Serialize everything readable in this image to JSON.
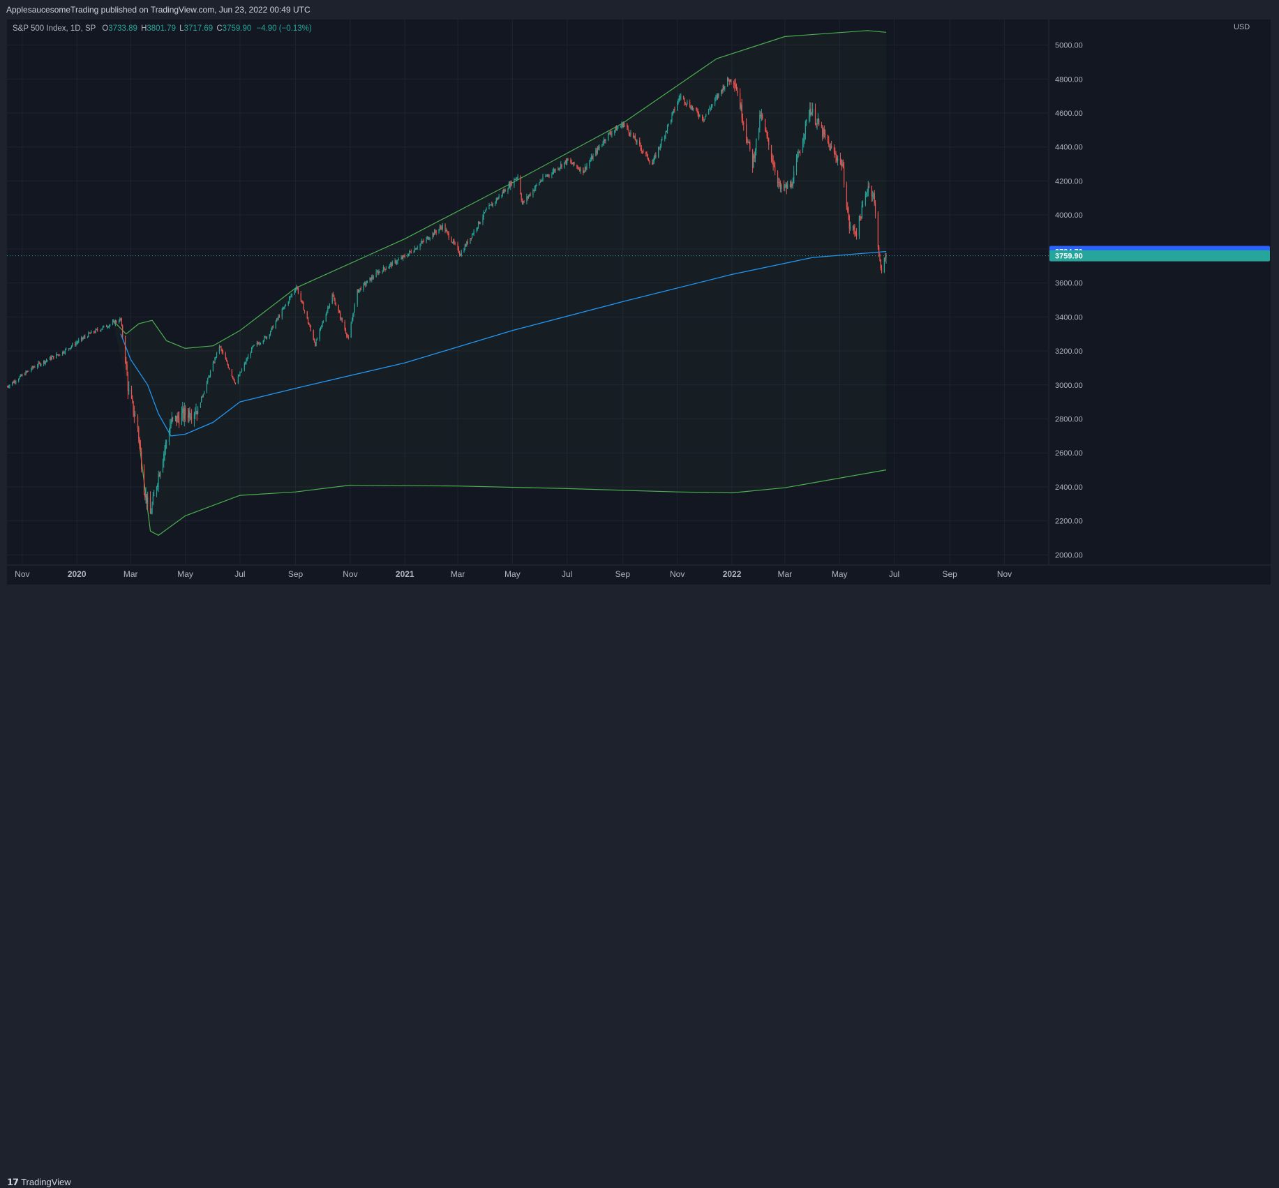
{
  "header": {
    "published_text": "ApplesaucesomeTrading published on TradingView.com, Jun 23, 2022 00:49 UTC"
  },
  "legend": {
    "symbol": "S&P 500 Index, 1D, SP",
    "open_label": "O",
    "open": "3733.89",
    "high_label": "H",
    "high": "3801.79",
    "low_label": "L",
    "low": "3717.69",
    "close_label": "C",
    "close": "3759.90",
    "change": "−4.90 (−0.13%)"
  },
  "currency": "USD",
  "footer": {
    "brand": "TradingView",
    "logo_icon": "tradingview-logo-icon"
  },
  "colors": {
    "up": "#26a69a",
    "down": "#ef5350",
    "ma": "#2196f3",
    "band": "#4caf50",
    "ma_label_bg": "#2962ff",
    "price_label_bg": "#26a69a"
  },
  "chart_data": {
    "type": "candlestick",
    "x_ticks": [
      {
        "label": "Nov",
        "date": "2019-11-01"
      },
      {
        "label": "2020",
        "date": "2020-01-01"
      },
      {
        "label": "Mar",
        "date": "2020-03-01"
      },
      {
        "label": "May",
        "date": "2020-05-01"
      },
      {
        "label": "Jul",
        "date": "2020-07-01"
      },
      {
        "label": "Sep",
        "date": "2020-09-01"
      },
      {
        "label": "Nov",
        "date": "2020-11-01"
      },
      {
        "label": "2021",
        "date": "2021-01-01"
      },
      {
        "label": "Mar",
        "date": "2021-03-01"
      },
      {
        "label": "May",
        "date": "2021-05-01"
      },
      {
        "label": "Jul",
        "date": "2021-07-01"
      },
      {
        "label": "Sep",
        "date": "2021-09-01"
      },
      {
        "label": "Nov",
        "date": "2021-11-01"
      },
      {
        "label": "2022",
        "date": "2022-01-01"
      },
      {
        "label": "Mar",
        "date": "2022-03-01"
      },
      {
        "label": "May",
        "date": "2022-05-01"
      },
      {
        "label": "Jul",
        "date": "2022-07-01"
      },
      {
        "label": "Sep",
        "date": "2022-09-01"
      },
      {
        "label": "Nov",
        "date": "2022-11-01"
      }
    ],
    "x_range": [
      "2019-10-15",
      "2022-12-15"
    ],
    "y_ticks": [
      "2000.00",
      "2200.00",
      "2400.00",
      "2600.00",
      "2800.00",
      "3000.00",
      "3200.00",
      "3400.00",
      "3600.00",
      "3800.00",
      "4000.00",
      "4200.00",
      "4400.00",
      "4600.00",
      "4800.00",
      "5000.00"
    ],
    "ylim": [
      1940,
      5150
    ],
    "grid": true,
    "current_price": 3759.9,
    "current_price_label": "3759.90",
    "ma_value_label": "3784.70",
    "price_path": [
      [
        "2019-10-15",
        2990
      ],
      [
        "2019-11-15",
        3110
      ],
      [
        "2019-12-15",
        3190
      ],
      [
        "2020-01-15",
        3300
      ],
      [
        "2020-02-19",
        3386
      ],
      [
        "2020-02-28",
        2950
      ],
      [
        "2020-03-09",
        2750
      ],
      [
        "2020-03-16",
        2390
      ],
      [
        "2020-03-23",
        2237
      ],
      [
        "2020-04-01",
        2470
      ],
      [
        "2020-04-15",
        2780
      ],
      [
        "2020-05-01",
        2830
      ],
      [
        "2020-05-15",
        2860
      ],
      [
        "2020-06-08",
        3230
      ],
      [
        "2020-06-26",
        3010
      ],
      [
        "2020-07-15",
        3220
      ],
      [
        "2020-08-01",
        3290
      ],
      [
        "2020-09-02",
        3580
      ],
      [
        "2020-09-23",
        3240
      ],
      [
        "2020-10-12",
        3530
      ],
      [
        "2020-10-30",
        3270
      ],
      [
        "2020-11-09",
        3550
      ],
      [
        "2020-12-01",
        3660
      ],
      [
        "2021-01-01",
        3756
      ],
      [
        "2021-02-12",
        3935
      ],
      [
        "2021-03-04",
        3770
      ],
      [
        "2021-04-01",
        4020
      ],
      [
        "2021-05-07",
        4230
      ],
      [
        "2021-05-12",
        4065
      ],
      [
        "2021-06-01",
        4200
      ],
      [
        "2021-07-01",
        4320
      ],
      [
        "2021-07-19",
        4260
      ],
      [
        "2021-08-15",
        4470
      ],
      [
        "2021-09-02",
        4537
      ],
      [
        "2021-10-04",
        4300
      ],
      [
        "2021-11-04",
        4700
      ],
      [
        "2021-11-30",
        4567
      ],
      [
        "2021-12-27",
        4791
      ],
      [
        "2022-01-04",
        4796
      ],
      [
        "2022-01-24",
        4300
      ],
      [
        "2022-02-02",
        4590
      ],
      [
        "2022-02-24",
        4150
      ],
      [
        "2022-03-08",
        4170
      ],
      [
        "2022-03-29",
        4630
      ],
      [
        "2022-04-21",
        4390
      ],
      [
        "2022-05-04",
        4300
      ],
      [
        "2022-05-12",
        3930
      ],
      [
        "2022-05-20",
        3900
      ],
      [
        "2022-06-02",
        4176
      ],
      [
        "2022-06-08",
        4115
      ],
      [
        "2022-06-16",
        3666
      ],
      [
        "2022-06-22",
        3760
      ]
    ],
    "ma_path": [
      [
        "2020-02-19",
        3300
      ],
      [
        "2020-03-01",
        3150
      ],
      [
        "2020-03-20",
        3000
      ],
      [
        "2020-04-01",
        2830
      ],
      [
        "2020-04-15",
        2700
      ],
      [
        "2020-05-01",
        2710
      ],
      [
        "2020-06-01",
        2780
      ],
      [
        "2020-07-01",
        2900
      ],
      [
        "2020-09-01",
        2980
      ],
      [
        "2021-01-01",
        3130
      ],
      [
        "2021-05-01",
        3320
      ],
      [
        "2021-09-01",
        3490
      ],
      [
        "2022-01-01",
        3650
      ],
      [
        "2022-04-01",
        3750
      ],
      [
        "2022-06-22",
        3785
      ]
    ],
    "upper_band": [
      [
        "2020-02-10",
        3380
      ],
      [
        "2020-02-25",
        3300
      ],
      [
        "2020-03-10",
        3360
      ],
      [
        "2020-03-25",
        3380
      ],
      [
        "2020-04-10",
        3260
      ],
      [
        "2020-05-01",
        3215
      ],
      [
        "2020-06-01",
        3230
      ],
      [
        "2020-07-01",
        3320
      ],
      [
        "2020-09-01",
        3570
      ],
      [
        "2021-01-01",
        3860
      ],
      [
        "2021-05-01",
        4190
      ],
      [
        "2021-09-01",
        4540
      ],
      [
        "2021-12-15",
        4920
      ],
      [
        "2022-03-01",
        5050
      ],
      [
        "2022-06-01",
        5085
      ],
      [
        "2022-06-22",
        5075
      ]
    ],
    "lower_band": [
      [
        "2020-03-10",
        2680
      ],
      [
        "2020-03-23",
        2140
      ],
      [
        "2020-04-01",
        2115
      ],
      [
        "2020-05-01",
        2230
      ],
      [
        "2020-07-01",
        2350
      ],
      [
        "2020-09-01",
        2370
      ],
      [
        "2020-11-01",
        2410
      ],
      [
        "2021-03-01",
        2405
      ],
      [
        "2021-07-01",
        2390
      ],
      [
        "2021-11-01",
        2370
      ],
      [
        "2022-01-01",
        2365
      ],
      [
        "2022-03-01",
        2395
      ],
      [
        "2022-06-22",
        2500
      ]
    ]
  }
}
